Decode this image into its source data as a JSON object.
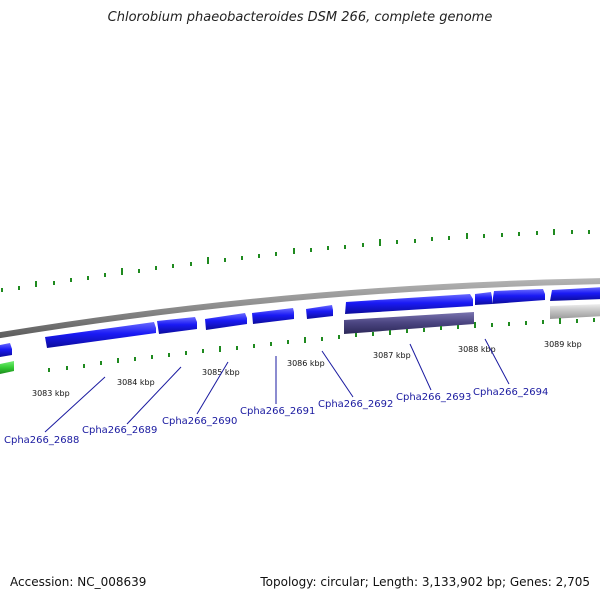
{
  "title": "Chlorobium phaeobacteroides DSM 266, complete genome",
  "footer": {
    "accession": "Accession: NC_008639",
    "summary": "Topology: circular; Length: 3,133,902 bp; Genes: 2,705"
  },
  "colors": {
    "forward_gene": "#1a1af5",
    "reverse_highlight": "#4a4480",
    "other_gene": "#c0c0c0",
    "rna_gene": "#33cc33",
    "ticks": "#1f8a1f",
    "backbone": "#8a8a8a",
    "label_text": "#1a1aa0"
  },
  "kbp_labels": [
    "3083 kbp",
    "3084 kbp",
    "3085 kbp",
    "3086 kbp",
    "3087 kbp",
    "3088 kbp",
    "3089 kbp"
  ],
  "gene_labels": [
    "Cpha266_2688",
    "Cpha266_2689",
    "Cpha266_2690",
    "Cpha266_2691",
    "Cpha266_2692",
    "Cpha266_2693",
    "Cpha266_2694"
  ]
}
